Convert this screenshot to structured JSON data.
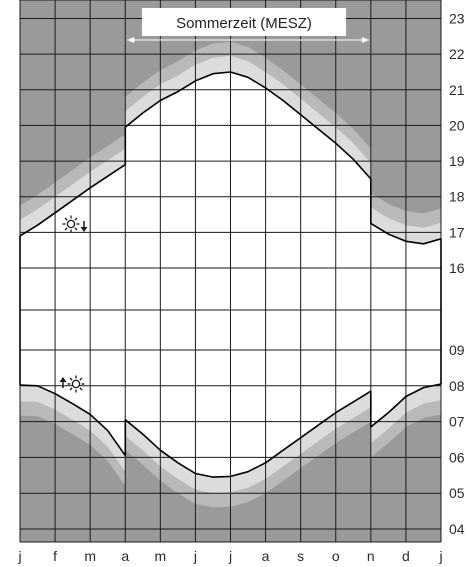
{
  "chart_data": {
    "type": "area",
    "title": "",
    "xlabel": "",
    "ylabel": "",
    "months": [
      "j",
      "f",
      "m",
      "a",
      "m",
      "j",
      "j",
      "a",
      "s",
      "o",
      "n",
      "d",
      "j"
    ],
    "hour_ticks": [
      "23",
      "22",
      "21",
      "20",
      "19",
      "18",
      "17",
      "16",
      "09",
      "08",
      "07",
      "06",
      "05",
      "04"
    ],
    "annotation": "Sommerzeit (MESZ)",
    "dst_start_month": 3,
    "dst_end_month": 10,
    "sunset": {
      "name": "",
      "x": [
        0,
        0.5,
        1,
        2,
        3,
        3,
        3.5,
        4,
        4.5,
        5,
        5.5,
        6,
        6.5,
        7,
        7.5,
        8,
        8.5,
        9,
        9.5,
        10,
        10,
        10.5,
        11,
        11.5,
        12
      ],
      "time": [
        16.9,
        17.2,
        17.55,
        18.25,
        18.9,
        19.95,
        20.35,
        20.7,
        20.95,
        21.25,
        21.45,
        21.5,
        21.35,
        21.05,
        20.7,
        20.3,
        19.9,
        19.5,
        19.05,
        18.5,
        17.25,
        16.95,
        16.75,
        16.68,
        16.82
      ]
    },
    "sunrise": {
      "name": "",
      "x": [
        0,
        0.5,
        1,
        1.5,
        2,
        2.5,
        3,
        3,
        3.5,
        4,
        4.5,
        5,
        5.5,
        6,
        6.5,
        7,
        7.5,
        8,
        8.5,
        9,
        9.5,
        10,
        10,
        10.5,
        11,
        11.5,
        12
      ],
      "time": [
        8.02,
        8.0,
        7.78,
        7.5,
        7.2,
        6.75,
        6.05,
        7.05,
        6.65,
        6.2,
        5.85,
        5.55,
        5.45,
        5.47,
        5.6,
        5.85,
        6.2,
        6.55,
        6.9,
        7.25,
        7.55,
        7.85,
        6.85,
        7.25,
        7.7,
        7.95,
        8.05
      ]
    },
    "colors": {
      "background_zone": "#9a9a9a",
      "twilight_outer": "#b9b9b9",
      "twilight_inner": "#dcdcdc",
      "daylight": "#ffffff",
      "grid": "#1a1a1a",
      "line": "#000000",
      "sun_icon": "#1a1a1a"
    },
    "icons": {
      "sunset_marker": "sun-down-icon",
      "sunrise_marker": "sun-up-icon"
    },
    "grid": true
  }
}
